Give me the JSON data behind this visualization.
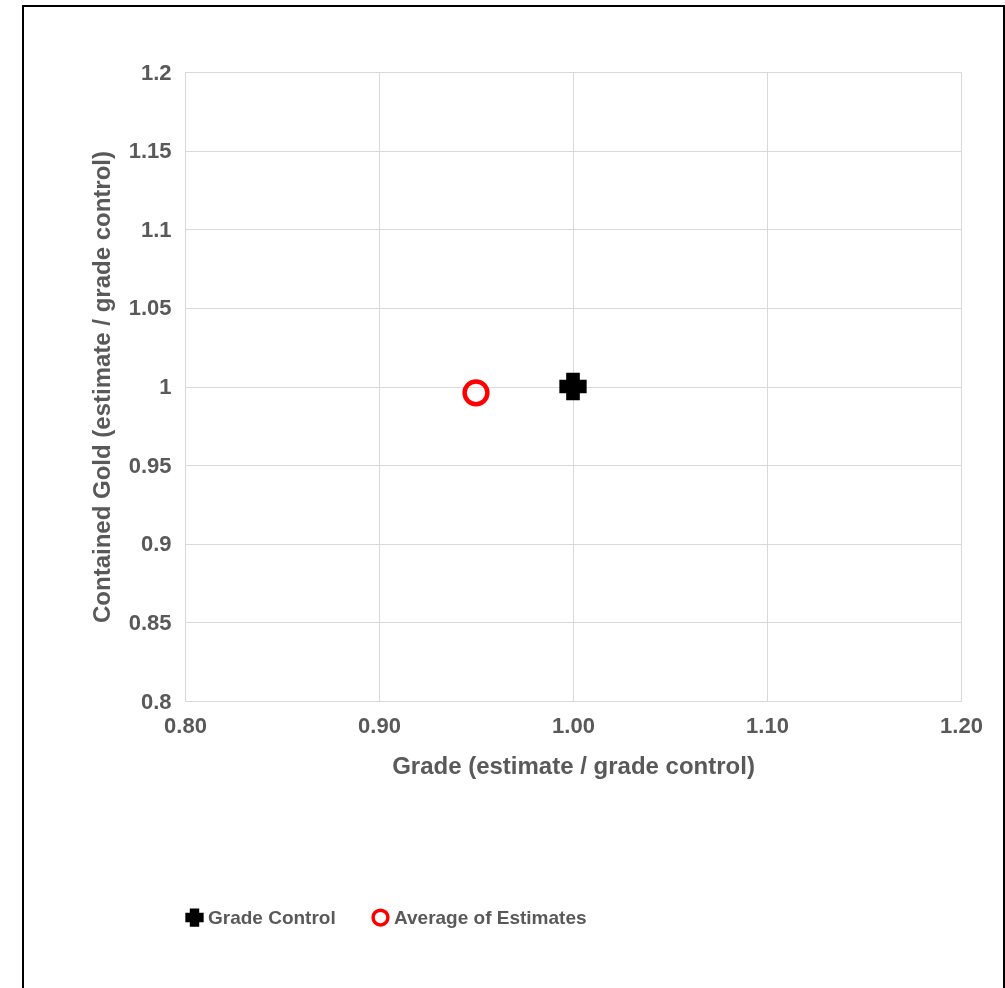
{
  "chart_data": {
    "type": "scatter",
    "xlabel": "Grade (estimate / grade control)",
    "ylabel": "Contained Gold (estimate / grade control)",
    "xlim": [
      0.8,
      1.2
    ],
    "xticks": [
      {
        "value": 0.8,
        "label": "0.80"
      },
      {
        "value": 0.9,
        "label": "0.90"
      },
      {
        "value": 1.0,
        "label": "1.00"
      },
      {
        "value": 1.1,
        "label": "1.10"
      },
      {
        "value": 1.2,
        "label": "1.20"
      }
    ],
    "ylim": [
      0.8,
      1.2
    ],
    "yticks": [
      0.8,
      0.85,
      0.9,
      0.95,
      1,
      1.05,
      1.1,
      1.15,
      1.2
    ],
    "grid": true,
    "legend": "bottom",
    "series": [
      {
        "name": "Grade Control",
        "color": "#000000",
        "marker": "cross",
        "x": [
          1.0
        ],
        "values": [
          1.0
        ]
      },
      {
        "name": "Average of Estimates",
        "color": "#ff0000",
        "marker": "circle",
        "x": [
          0.95
        ],
        "values": [
          0.996
        ]
      }
    ]
  }
}
